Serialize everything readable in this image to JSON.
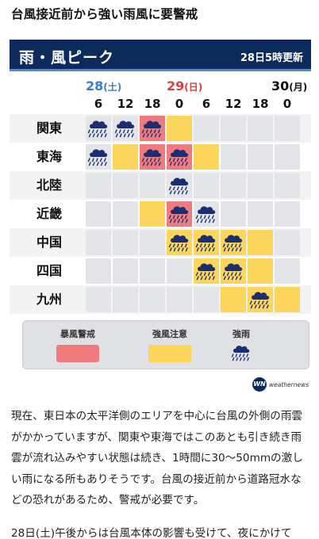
{
  "headline": "台風接近前から強い雨風に要警戒",
  "banner": {
    "title": "雨・風ピーク",
    "updated": "28日5時更新"
  },
  "dates": [
    {
      "day": "28",
      "weekday": "(土)"
    },
    {
      "day": "29",
      "weekday": "(日)"
    },
    {
      "day": "30",
      "weekday": "(月)"
    }
  ],
  "hours": [
    "6",
    "12",
    "18",
    "0",
    "6",
    "12",
    "18",
    "0"
  ],
  "colors": {
    "none": "#e3e5e9",
    "wind": "#fcd55c",
    "storm": "#f07b7f",
    "banner": "#0d2a5c",
    "sat": "#3a7bd5",
    "sun": "#d94040"
  },
  "grid": {
    "rows": [
      {
        "region": "関東",
        "cells": [
          "rain",
          "rain",
          "storm-rain",
          "wind",
          "none",
          "none",
          "none",
          "none"
        ]
      },
      {
        "region": "東海",
        "cells": [
          "rain",
          "wind",
          "storm-rain",
          "storm-rain",
          "wind",
          "none",
          "none",
          "none"
        ]
      },
      {
        "region": "北陸",
        "cells": [
          "none",
          "none",
          "none",
          "rain",
          "none",
          "none",
          "none",
          "none"
        ]
      },
      {
        "region": "近畿",
        "cells": [
          "none",
          "none",
          "wind",
          "storm-rain",
          "rain",
          "none",
          "none",
          "none"
        ]
      },
      {
        "region": "中国",
        "cells": [
          "none",
          "none",
          "none",
          "wind-rain",
          "wind-rain",
          "wind-rain",
          "wind",
          "none"
        ]
      },
      {
        "region": "四国",
        "cells": [
          "none",
          "none",
          "none",
          "none",
          "wind-rain",
          "wind-rain",
          "wind",
          "none"
        ]
      },
      {
        "region": "九州",
        "cells": [
          "none",
          "none",
          "none",
          "none",
          "none",
          "wind",
          "wind-rain",
          "wind"
        ]
      }
    ]
  },
  "legend": {
    "storm": "暴風警戒",
    "wind": "強風注意",
    "rain": "強雨",
    "icon": "heavy-rain-cloud-icon"
  },
  "brand": {
    "mark": "WN",
    "text": "weathernews"
  },
  "body": {
    "paragraph1": "現在、東日本の太平洋側のエリアを中心に台風の外側の雨雲がかかっていますが、関東や東海ではこのあとも引き続き雨雲が流れ込みやすい状態は続き、1時間に30～50mmの激しい雨になる所もありそうです。台風の接近前から道路冠水などの恐れがあるため、警戒が必要です。",
    "paragraph2": "28日(土)午後からは台風本体の影響も受けて、夜にかけて"
  }
}
